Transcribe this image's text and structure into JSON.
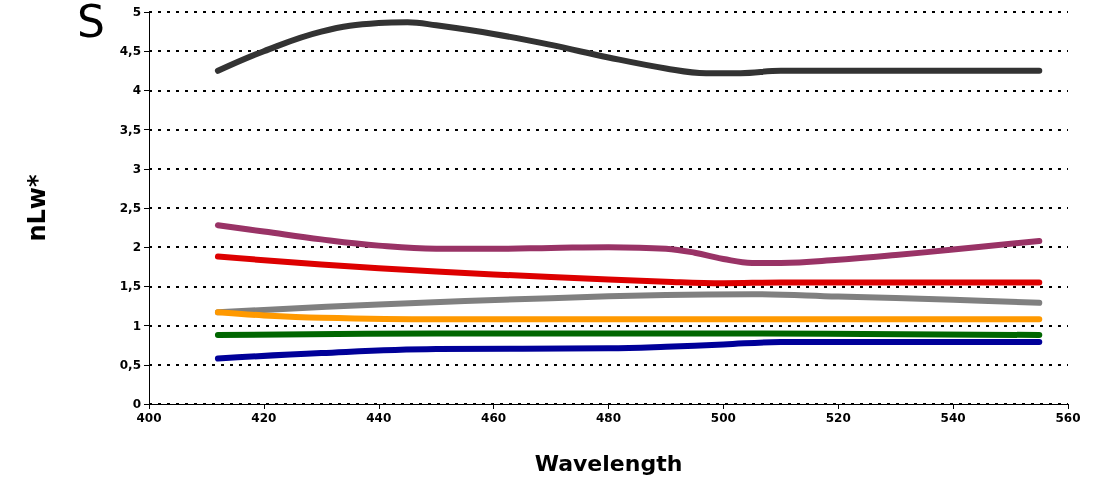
{
  "chart_data": {
    "type": "line",
    "title": "S",
    "xlabel": "Wavelength",
    "ylabel": "nLw*",
    "xlim": [
      400,
      560
    ],
    "xticks": [
      400,
      420,
      440,
      460,
      480,
      500,
      520,
      540,
      560
    ],
    "ylim": [
      0,
      5
    ],
    "yticks": [
      0,
      {
        "value": 0.5,
        "label": "0,5"
      },
      1,
      {
        "value": 1.5,
        "label": "1,5"
      },
      2,
      {
        "value": 2.5,
        "label": "2,5"
      },
      3,
      {
        "value": 3.5,
        "label": "3,5"
      },
      4,
      {
        "value": 4.5,
        "label": "4,5"
      },
      5
    ],
    "grid": "y",
    "marker": "none",
    "line_style": "solid",
    "series": [
      {
        "color": "#333333",
        "x": [
          412,
          420,
          430,
          440,
          445,
          450,
          460,
          470,
          480,
          490,
          497,
          503,
          510,
          520,
          540,
          555
        ],
        "values": [
          4.25,
          4.5,
          4.75,
          4.86,
          4.87,
          4.83,
          4.72,
          4.58,
          4.42,
          4.28,
          4.22,
          4.22,
          4.25,
          4.25,
          4.25,
          4.25
        ]
      },
      {
        "color": "#993366",
        "x": [
          412,
          420,
          430,
          440,
          450,
          460,
          470,
          480,
          490,
          495,
          500,
          505,
          510,
          520,
          530,
          540,
          555
        ],
        "values": [
          2.28,
          2.2,
          2.1,
          2.02,
          1.98,
          1.98,
          1.99,
          2.0,
          1.98,
          1.93,
          1.85,
          1.8,
          1.8,
          1.84,
          1.9,
          1.97,
          2.08
        ]
      },
      {
        "color": "#dd0000",
        "x": [
          412,
          430,
          450,
          470,
          490,
          500,
          510,
          555
        ],
        "values": [
          1.88,
          1.78,
          1.69,
          1.62,
          1.56,
          1.54,
          1.55,
          1.55
        ]
      },
      {
        "color": "#808080",
        "x": [
          412,
          440,
          470,
          490,
          505,
          520,
          540,
          555
        ],
        "values": [
          1.17,
          1.27,
          1.35,
          1.39,
          1.4,
          1.37,
          1.33,
          1.29
        ]
      },
      {
        "color": "#ff9900",
        "x": [
          412,
          420,
          430,
          450,
          500,
          555
        ],
        "values": [
          1.17,
          1.13,
          1.1,
          1.08,
          1.08,
          1.08
        ]
      },
      {
        "color": "#006600",
        "x": [
          412,
          450,
          500,
          555
        ],
        "values": [
          0.88,
          0.9,
          0.9,
          0.88
        ]
      },
      {
        "color": "#000099",
        "x": [
          412,
          430,
          450,
          480,
          490,
          500,
          510,
          555
        ],
        "values": [
          0.58,
          0.65,
          0.7,
          0.71,
          0.73,
          0.76,
          0.79,
          0.79
        ]
      }
    ]
  }
}
